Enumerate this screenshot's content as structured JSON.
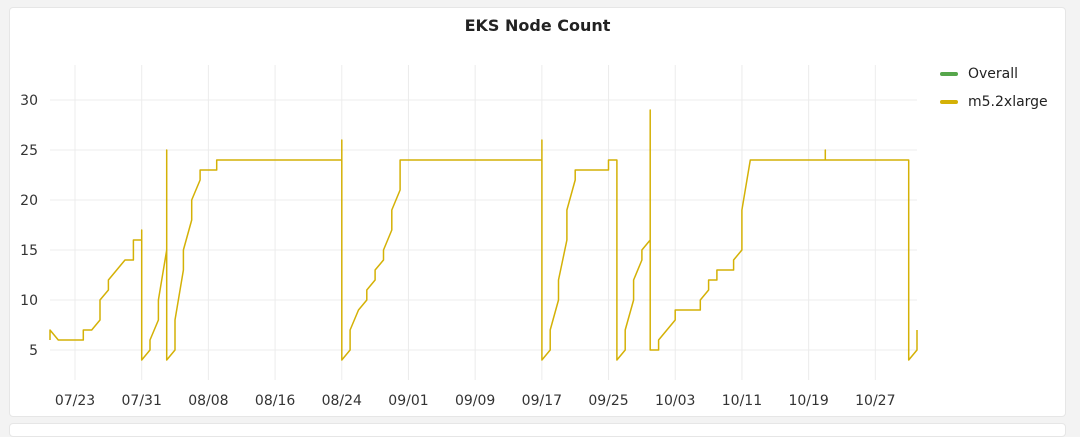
{
  "panel": {
    "title": "EKS Node Count"
  },
  "chart_data": {
    "type": "line",
    "title": "EKS Node Count",
    "xlabel": "",
    "ylabel": "",
    "ylim": [
      2,
      33
    ],
    "y_ticks": [
      5,
      10,
      15,
      20,
      25,
      30
    ],
    "x_start": "07/20",
    "x_end": "11/01",
    "x_ticks": [
      "07/23",
      "07/31",
      "08/08",
      "08/16",
      "08/24",
      "09/01",
      "09/09",
      "09/17",
      "09/25",
      "10/03",
      "10/11",
      "10/19",
      "10/27"
    ],
    "grid": true,
    "legend_position": "right",
    "series": [
      {
        "name": "Overall",
        "color": "#56a64b",
        "points": []
      },
      {
        "name": "m5.2xlarge",
        "color": "#d4b106",
        "points": [
          [
            "07/20",
            6
          ],
          [
            "07/20",
            7
          ],
          [
            "07/21",
            6
          ],
          [
            "07/24",
            6
          ],
          [
            "07/24",
            7
          ],
          [
            "07/25",
            7
          ],
          [
            "07/26",
            8
          ],
          [
            "07/26",
            10
          ],
          [
            "07/27",
            11
          ],
          [
            "07/27",
            12
          ],
          [
            "07/28",
            13
          ],
          [
            "07/29",
            14
          ],
          [
            "07/30",
            14
          ],
          [
            "07/30",
            16
          ],
          [
            "07/31",
            16
          ],
          [
            "07/31",
            17
          ],
          [
            "07/31",
            4
          ],
          [
            "08/01",
            5
          ],
          [
            "08/01",
            6
          ],
          [
            "08/02",
            8
          ],
          [
            "08/02",
            10
          ],
          [
            "08/03",
            15
          ],
          [
            "08/03",
            20
          ],
          [
            "08/03",
            23
          ],
          [
            "08/03",
            25
          ],
          [
            "08/03",
            4
          ],
          [
            "08/04",
            5
          ],
          [
            "08/04",
            8
          ],
          [
            "08/05",
            13
          ],
          [
            "08/05",
            15
          ],
          [
            "08/06",
            18
          ],
          [
            "08/06",
            20
          ],
          [
            "08/07",
            22
          ],
          [
            "08/07",
            23
          ],
          [
            "08/09",
            23
          ],
          [
            "08/09",
            24
          ],
          [
            "08/24",
            24
          ],
          [
            "08/24",
            26
          ],
          [
            "08/24",
            4
          ],
          [
            "08/25",
            5
          ],
          [
            "08/25",
            7
          ],
          [
            "08/26",
            9
          ],
          [
            "08/27",
            10
          ],
          [
            "08/27",
            11
          ],
          [
            "08/28",
            12
          ],
          [
            "08/28",
            13
          ],
          [
            "08/29",
            14
          ],
          [
            "08/29",
            15
          ],
          [
            "08/30",
            17
          ],
          [
            "08/30",
            19
          ],
          [
            "08/31",
            21
          ],
          [
            "08/31",
            24
          ],
          [
            "09/17",
            24
          ],
          [
            "09/17",
            26
          ],
          [
            "09/17",
            4
          ],
          [
            "09/18",
            5
          ],
          [
            "09/18",
            7
          ],
          [
            "09/19",
            10
          ],
          [
            "09/19",
            12
          ],
          [
            "09/20",
            16
          ],
          [
            "09/20",
            19
          ],
          [
            "09/21",
            22
          ],
          [
            "09/21",
            23
          ],
          [
            "09/25",
            23
          ],
          [
            "09/25",
            24
          ],
          [
            "09/26",
            24
          ],
          [
            "09/26",
            4
          ],
          [
            "09/27",
            5
          ],
          [
            "09/27",
            7
          ],
          [
            "09/28",
            10
          ],
          [
            "09/28",
            12
          ],
          [
            "09/29",
            14
          ],
          [
            "09/29",
            15
          ],
          [
            "09/30",
            16
          ],
          [
            "09/30",
            17
          ],
          [
            "09/30",
            29
          ],
          [
            "09/30",
            5
          ],
          [
            "10/01",
            5
          ],
          [
            "10/01",
            6
          ],
          [
            "10/02",
            7
          ],
          [
            "10/03",
            8
          ],
          [
            "10/03",
            9
          ],
          [
            "10/06",
            9
          ],
          [
            "10/06",
            10
          ],
          [
            "10/07",
            11
          ],
          [
            "10/07",
            12
          ],
          [
            "10/08",
            12
          ],
          [
            "10/08",
            13
          ],
          [
            "10/10",
            13
          ],
          [
            "10/10",
            14
          ],
          [
            "10/11",
            15
          ],
          [
            "10/11",
            16
          ],
          [
            "10/11",
            19
          ],
          [
            "10/12",
            24
          ],
          [
            "10/21",
            24
          ],
          [
            "10/21",
            25
          ],
          [
            "10/21",
            24
          ],
          [
            "10/31",
            24
          ],
          [
            "10/31",
            4
          ],
          [
            "11/01",
            5
          ],
          [
            "11/01",
            6
          ],
          [
            "11/01",
            7
          ]
        ]
      }
    ]
  }
}
